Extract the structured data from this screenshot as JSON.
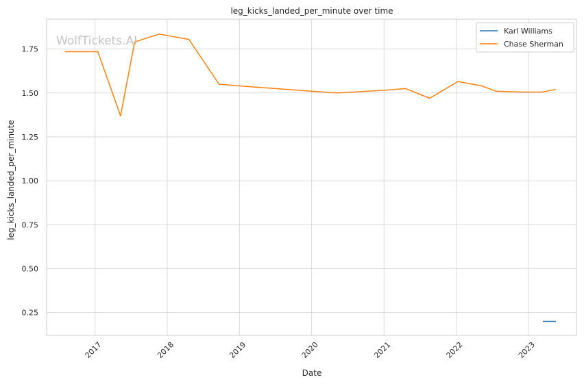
{
  "watermark": "WolfTickets.AI",
  "chart_data": {
    "type": "line",
    "title": "leg_kicks_landed_per_minute over time",
    "xlabel": "Date",
    "ylabel": "leg_kicks_landed_per_minute",
    "x_type": "date",
    "xlim": [
      "2016-05-01",
      "2023-09-01"
    ],
    "ylim": [
      0.12,
      1.92
    ],
    "x_ticks": [
      "2017-01-01",
      "2018-01-01",
      "2019-01-01",
      "2020-01-01",
      "2021-01-01",
      "2022-01-01",
      "2023-01-01"
    ],
    "x_tick_labels": [
      "2017",
      "2018",
      "2019",
      "2020",
      "2021",
      "2022",
      "2023"
    ],
    "y_ticks": [
      0.25,
      0.5,
      0.75,
      1.0,
      1.25,
      1.5,
      1.75
    ],
    "y_tick_labels": [
      "0.25",
      "0.50",
      "0.75",
      "1.00",
      "1.25",
      "1.50",
      "1.75"
    ],
    "grid": true,
    "legend_position": "top-right",
    "series": [
      {
        "name": "Karl Williams",
        "color": "#1f77b4",
        "x": [
          "2023-03-15",
          "2023-05-20"
        ],
        "y": [
          0.2,
          0.2
        ]
      },
      {
        "name": "Chase Sherman",
        "color": "#ff7f0e",
        "x": [
          "2016-08-01",
          "2017-01-15",
          "2017-05-10",
          "2017-07-20",
          "2017-11-20",
          "2018-04-20",
          "2018-09-20",
          "2019-01-01",
          "2019-07-01",
          "2020-01-01",
          "2020-05-10",
          "2021-01-01",
          "2021-04-20",
          "2021-08-20",
          "2022-01-10",
          "2022-05-10",
          "2022-07-20",
          "2022-12-01",
          "2023-03-10",
          "2023-05-20"
        ],
        "y": [
          1.735,
          1.735,
          1.37,
          1.79,
          1.835,
          1.805,
          1.55,
          1.54,
          1.525,
          1.51,
          1.5,
          1.515,
          1.525,
          1.47,
          1.565,
          1.54,
          1.51,
          1.505,
          1.505,
          1.52
        ]
      }
    ]
  }
}
